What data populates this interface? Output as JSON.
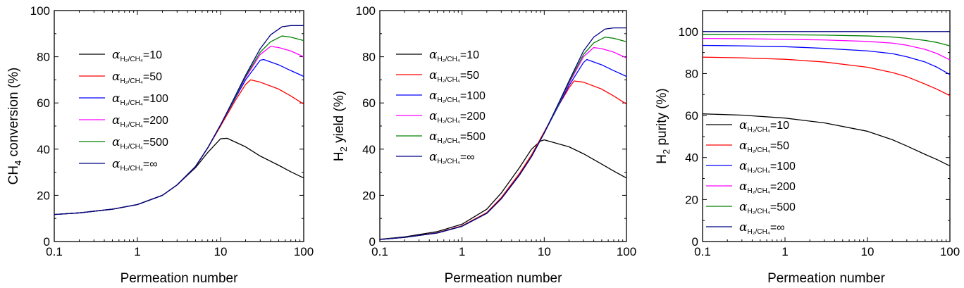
{
  "figure": {
    "panel_count": 3
  },
  "chart_data": [
    {
      "type": "line",
      "xscale": "log",
      "xlim": [
        0.1,
        100
      ],
      "ylim": [
        0,
        100
      ],
      "xticks": [
        0.1,
        1,
        10,
        100
      ],
      "xtick_labels": [
        "0.1",
        "1",
        "10",
        "100"
      ],
      "yticks": [
        0,
        20,
        40,
        60,
        80,
        100
      ],
      "ytick_labels": [
        "0",
        "20",
        "40",
        "60",
        "80",
        "100"
      ],
      "xlabel": "Permeation number",
      "ylabel": "CH",
      "ylabel_sub": "4",
      "ylabel_rest": " conversion (%)",
      "legend_position": "center-left",
      "series": [
        {
          "alpha_sub": "H₂/CH₄",
          "value": "=10",
          "color": "#000000",
          "x": [
            0.1,
            0.2,
            0.5,
            1,
            2,
            3,
            5,
            7,
            10,
            12,
            20,
            30,
            50,
            70,
            100
          ],
          "y": [
            11.7,
            12.4,
            14.0,
            16.0,
            20.0,
            24.5,
            32.0,
            38.5,
            44.5,
            44.7,
            41.0,
            37.0,
            33.0,
            30.2,
            27.5
          ]
        },
        {
          "alpha_sub": "H₂/CH₄",
          "value": "=50",
          "color": "#ff0000",
          "x": [
            0.1,
            0.2,
            0.5,
            1,
            2,
            3,
            5,
            7,
            10,
            15,
            20,
            23,
            30,
            50,
            70,
            100
          ],
          "y": [
            11.7,
            12.4,
            14.0,
            16.0,
            20.0,
            24.5,
            32.5,
            40.5,
            50.0,
            61.0,
            68.0,
            70.0,
            69.0,
            66.0,
            63.0,
            59.5
          ]
        },
        {
          "alpha_sub": "H₂/CH₄",
          "value": "=100",
          "color": "#0000ff",
          "x": [
            0.1,
            0.2,
            0.5,
            1,
            2,
            3,
            5,
            7,
            10,
            15,
            20,
            30,
            33,
            50,
            70,
            100
          ],
          "y": [
            11.7,
            12.4,
            14.0,
            16.0,
            20.0,
            24.5,
            32.5,
            40.5,
            50.5,
            62.0,
            70.0,
            78.5,
            78.8,
            76.5,
            74.0,
            71.5
          ]
        },
        {
          "alpha_sub": "H₂/CH₄",
          "value": "=200",
          "color": "#ff00ff",
          "x": [
            0.1,
            0.2,
            0.5,
            1,
            2,
            3,
            5,
            7,
            10,
            15,
            20,
            30,
            40,
            50,
            70,
            100
          ],
          "y": [
            11.7,
            12.4,
            14.0,
            16.0,
            20.0,
            24.5,
            32.5,
            40.5,
            50.5,
            62.5,
            71.0,
            81.0,
            84.5,
            84.0,
            82.5,
            80.0
          ]
        },
        {
          "alpha_sub": "H₂/CH₄",
          "value": "=500",
          "color": "#008000",
          "x": [
            0.1,
            0.2,
            0.5,
            1,
            2,
            3,
            5,
            7,
            10,
            15,
            20,
            30,
            40,
            55,
            70,
            100
          ],
          "y": [
            11.7,
            12.4,
            14.0,
            16.0,
            20.0,
            24.5,
            32.5,
            40.5,
            50.5,
            62.5,
            71.5,
            82.0,
            86.5,
            89.0,
            88.5,
            87.0
          ]
        },
        {
          "alpha_sub": "H₂/CH₄",
          "value": "=∞",
          "color": "#000080",
          "x": [
            0.1,
            0.2,
            0.5,
            1,
            2,
            3,
            5,
            7,
            10,
            15,
            20,
            30,
            40,
            55,
            70,
            100
          ],
          "y": [
            11.7,
            12.4,
            14.0,
            16.0,
            20.0,
            24.5,
            32.5,
            40.5,
            50.5,
            63.0,
            72.0,
            83.5,
            89.5,
            93.0,
            93.5,
            93.5
          ]
        }
      ]
    },
    {
      "type": "line",
      "xscale": "log",
      "xlim": [
        0.1,
        100
      ],
      "ylim": [
        0,
        100
      ],
      "xticks": [
        0.1,
        1,
        10,
        100
      ],
      "xtick_labels": [
        "0.1",
        "1",
        "10",
        "100"
      ],
      "yticks": [
        0,
        20,
        40,
        60,
        80,
        100
      ],
      "ytick_labels": [
        "0",
        "20",
        "40",
        "60",
        "80",
        "100"
      ],
      "xlabel": "Permeation number",
      "ylabel": "H",
      "ylabel_sub": "2",
      "ylabel_rest": " yield (%)",
      "legend_position": "top-left",
      "series": [
        {
          "alpha_sub": "H₂/CH₄",
          "value": "=10",
          "color": "#000000",
          "x": [
            0.1,
            0.2,
            0.5,
            1,
            2,
            3,
            5,
            7,
            9,
            10,
            20,
            30,
            50,
            70,
            100
          ],
          "y": [
            1.0,
            2.0,
            4.3,
            7.5,
            14.0,
            21.0,
            32.0,
            40.0,
            43.5,
            44.0,
            41.0,
            38.0,
            33.5,
            30.5,
            27.5
          ]
        },
        {
          "alpha_sub": "H₂/CH₄",
          "value": "=50",
          "color": "#ff0000",
          "x": [
            0.1,
            0.2,
            0.5,
            1,
            2,
            3,
            5,
            7,
            10,
            15,
            20,
            23,
            30,
            50,
            70,
            100
          ],
          "y": [
            0.9,
            1.8,
            3.8,
            6.8,
            12.5,
            19.0,
            29.5,
            37.5,
            47.5,
            59.0,
            66.5,
            69.5,
            69.0,
            66.0,
            63.0,
            59.5
          ]
        },
        {
          "alpha_sub": "H₂/CH₄",
          "value": "=100",
          "color": "#0000ff",
          "x": [
            0.1,
            0.2,
            0.5,
            1,
            2,
            3,
            5,
            7,
            10,
            15,
            20,
            30,
            33,
            50,
            70,
            100
          ],
          "y": [
            0.9,
            1.8,
            3.7,
            6.6,
            12.2,
            18.5,
            28.8,
            36.8,
            47.0,
            59.0,
            67.5,
            77.5,
            78.8,
            76.5,
            74.0,
            71.5
          ]
        },
        {
          "alpha_sub": "H₂/CH₄",
          "value": "=200",
          "color": "#ff00ff",
          "x": [
            0.1,
            0.2,
            0.5,
            1,
            2,
            3,
            5,
            7,
            10,
            15,
            20,
            30,
            40,
            50,
            70,
            100
          ],
          "y": [
            0.9,
            1.8,
            3.7,
            6.6,
            12.2,
            18.5,
            28.8,
            36.8,
            47.0,
            59.5,
            68.5,
            80.0,
            84.0,
            83.5,
            82.0,
            79.5
          ]
        },
        {
          "alpha_sub": "H₂/CH₄",
          "value": "=500",
          "color": "#008000",
          "x": [
            0.1,
            0.2,
            0.5,
            1,
            2,
            3,
            5,
            7,
            10,
            15,
            20,
            30,
            40,
            55,
            70,
            100
          ],
          "y": [
            0.9,
            1.8,
            3.7,
            6.6,
            12.2,
            18.5,
            28.8,
            36.8,
            47.0,
            59.5,
            69.0,
            81.0,
            86.0,
            88.5,
            88.0,
            86.5
          ]
        },
        {
          "alpha_sub": "H₂/CH₄",
          "value": "=∞",
          "color": "#000080",
          "x": [
            0.1,
            0.2,
            0.5,
            1,
            2,
            3,
            5,
            7,
            10,
            15,
            20,
            30,
            40,
            55,
            70,
            100
          ],
          "y": [
            0.9,
            1.8,
            3.7,
            6.6,
            12.2,
            18.5,
            28.8,
            36.8,
            47.0,
            60.0,
            69.5,
            82.5,
            88.5,
            92.0,
            92.5,
            92.5
          ]
        }
      ]
    },
    {
      "type": "line",
      "xscale": "log",
      "xlim": [
        0.1,
        100
      ],
      "ylim": [
        0,
        110
      ],
      "xticks": [
        0.1,
        1,
        10,
        100
      ],
      "xtick_labels": [
        "0.1",
        "1",
        "10",
        "100"
      ],
      "yticks": [
        0,
        20,
        40,
        60,
        80,
        100
      ],
      "ytick_labels": [
        "0",
        "20",
        "40",
        "60",
        "80",
        "100"
      ],
      "xlabel": "Permeation number",
      "ylabel": "H",
      "ylabel_sub": "2",
      "ylabel_rest": " purity (%)",
      "legend_position": "bottom-left",
      "series": [
        {
          "alpha_sub": "H₂/CH₄",
          "value": "=10",
          "color": "#000000",
          "x": [
            0.1,
            0.3,
            1,
            3,
            10,
            20,
            30,
            50,
            70,
            100
          ],
          "y": [
            60.8,
            60.2,
            58.8,
            56.5,
            52.5,
            48.5,
            45.5,
            41.5,
            39.0,
            36.0
          ]
        },
        {
          "alpha_sub": "H₂/CH₄",
          "value": "=50",
          "color": "#ff0000",
          "x": [
            0.1,
            0.3,
            1,
            3,
            10,
            20,
            30,
            50,
            70,
            100
          ],
          "y": [
            87.8,
            87.5,
            86.8,
            85.5,
            83.0,
            80.5,
            78.5,
            75.0,
            72.5,
            69.5
          ]
        },
        {
          "alpha_sub": "H₂/CH₄",
          "value": "=100",
          "color": "#0000ff",
          "x": [
            0.1,
            0.3,
            1,
            3,
            10,
            20,
            30,
            50,
            70,
            100
          ],
          "y": [
            93.4,
            93.2,
            92.8,
            92.0,
            90.8,
            89.5,
            88.0,
            85.5,
            83.0,
            79.5
          ]
        },
        {
          "alpha_sub": "H₂/CH₄",
          "value": "=200",
          "color": "#ff00ff",
          "x": [
            0.1,
            0.3,
            1,
            3,
            10,
            20,
            30,
            50,
            70,
            100
          ],
          "y": [
            96.7,
            96.6,
            96.3,
            96.0,
            95.3,
            94.5,
            93.5,
            91.5,
            89.5,
            86.5
          ]
        },
        {
          "alpha_sub": "H₂/CH₄",
          "value": "=500",
          "color": "#008000",
          "x": [
            0.1,
            0.3,
            1,
            3,
            10,
            20,
            30,
            50,
            70,
            100
          ],
          "y": [
            98.7,
            98.6,
            98.5,
            98.3,
            97.9,
            97.4,
            96.8,
            95.8,
            94.8,
            93.2
          ]
        },
        {
          "alpha_sub": "H₂/CH₄",
          "value": "=∞",
          "color": "#000080",
          "x": [
            0.1,
            1,
            10,
            100
          ],
          "y": [
            100,
            100,
            100,
            100
          ]
        }
      ]
    }
  ]
}
